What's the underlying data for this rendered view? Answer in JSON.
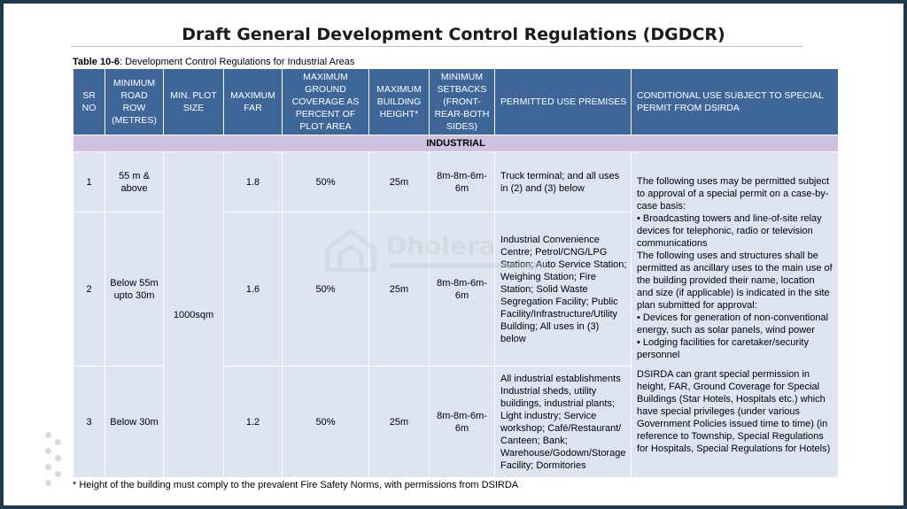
{
  "title": "Draft General Development Control Regulations (DGDCR)",
  "caption": {
    "ref": "Table 10-6",
    "text": ": Development Control Regulations for Industrial Areas"
  },
  "headers": {
    "sr": "SR NO",
    "road": "MINIMUM ROAD ROW (METRES)",
    "plot": "MIN. PLOT SIZE",
    "far": "MAXIMUM FAR",
    "coverage": "MAXIMUM GROUND COVERAGE AS PERCENT OF PLOT AREA",
    "height": "MAXIMUM BUILDING HEIGHT*",
    "setbacks": "MINIMUM SETBACKS (FRONT-REAR-BOTH SIDES)",
    "permitted": "PERMITTED USE PREMISES",
    "conditional": "CONDITIONAL USE SUBJECT TO SPECIAL PERMIT FROM DSIRDA"
  },
  "section": "INDUSTRIAL",
  "plot_size": "1000sqm",
  "rows": [
    {
      "sr": "1",
      "road": "55 m & above",
      "far": "1.8",
      "coverage": "50%",
      "height": "25m",
      "setbacks": "8m-8m-6m-6m",
      "permitted": "Truck terminal; and all uses in (2) and (3) below"
    },
    {
      "sr": "2",
      "road": "Below 55m upto 30m",
      "far": "1.6",
      "coverage": "50%",
      "height": "25m",
      "setbacks": "8m-8m-6m-6m",
      "permitted": "Industrial Convenience Centre; Petrol/CNG/LPG Station; Auto Service Station; Weighing Station; Fire Station; Solid Waste Segregation Facility; Public Facility/Infrastructure/Utility Building; All uses in (3) below"
    },
    {
      "sr": "3",
      "road": "Below 30m",
      "far": "1.2",
      "coverage": "50%",
      "height": "25m",
      "setbacks": "8m-8m-6m-6m",
      "permitted": "All industrial establishments Industrial sheds, utility buildings, industrial plants; Light industry; Service workshop; Café/Restaurant/ Canteen; Bank; Warehouse/Godown/Storage Facility; Dormitories"
    }
  ],
  "conditional": {
    "intro": "The following uses may be permitted subject to approval of a special permit on a case-by-case basis:",
    "bullet1": "• Broadcasting towers and line-of-site relay devices for telephonic, radio or television communications",
    "ancillary": "The following uses and structures shall be permitted as ancillary uses to the main use of the building provided their name, location and size (if applicable) is indicated in the site plan submitted for approval:",
    "bullet2": "• Devices for generation of non-conventional energy, such as solar panels, wind power",
    "bullet3": "• Lodging facilities for caretaker/security personnel",
    "dsirda": "DSIRDA can grant special permission in height, FAR, Ground Coverage for Special Buildings (Star Hotels, Hospitals etc.) which have special privileges (under various Government Policies issued time to time) (in reference to Township, Special Regulations for Hospitals, Special Regulations for Hotels)"
  },
  "footnote": "* Height of the building must comply to the prevalent Fire Safety Norms, with permissions from DSIRDA",
  "watermark": "Dholera",
  "colors": {
    "header_bg": "#3e6698",
    "cell_bg": "#dde5f1",
    "section_bg": "#cfc2e0",
    "frame": "#1f3a4d"
  }
}
